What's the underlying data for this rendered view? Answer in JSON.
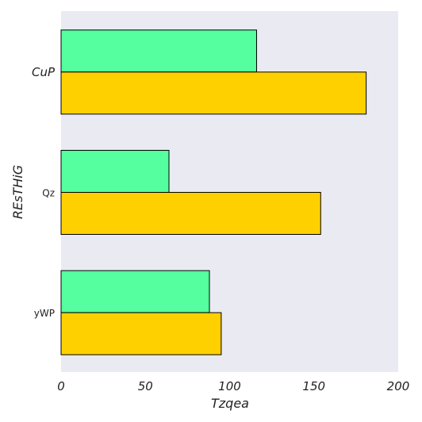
{
  "chart_data": {
    "type": "bar",
    "orientation": "horizontal",
    "title": "",
    "xlabel": "Tzqea",
    "ylabel": "REsTHiG",
    "categories": [
      "CuP",
      "Qz",
      "yWP"
    ],
    "category_label_styles": [
      "italic",
      "normal",
      "normal"
    ],
    "series": [
      {
        "values": [
          116,
          64,
          88
        ],
        "color": "#55ffa0"
      },
      {
        "values": [
          181,
          154,
          95
        ],
        "color": "#ffd000"
      }
    ],
    "xlim": [
      0,
      200
    ],
    "xticks": [
      0,
      50,
      100,
      150,
      200
    ],
    "xtick_labels": [
      "0",
      "50",
      "100",
      "150",
      "200"
    ],
    "grid": false,
    "legend": "none",
    "plot_background": "#eaeaf2",
    "bar_edge_color": "#000000"
  }
}
